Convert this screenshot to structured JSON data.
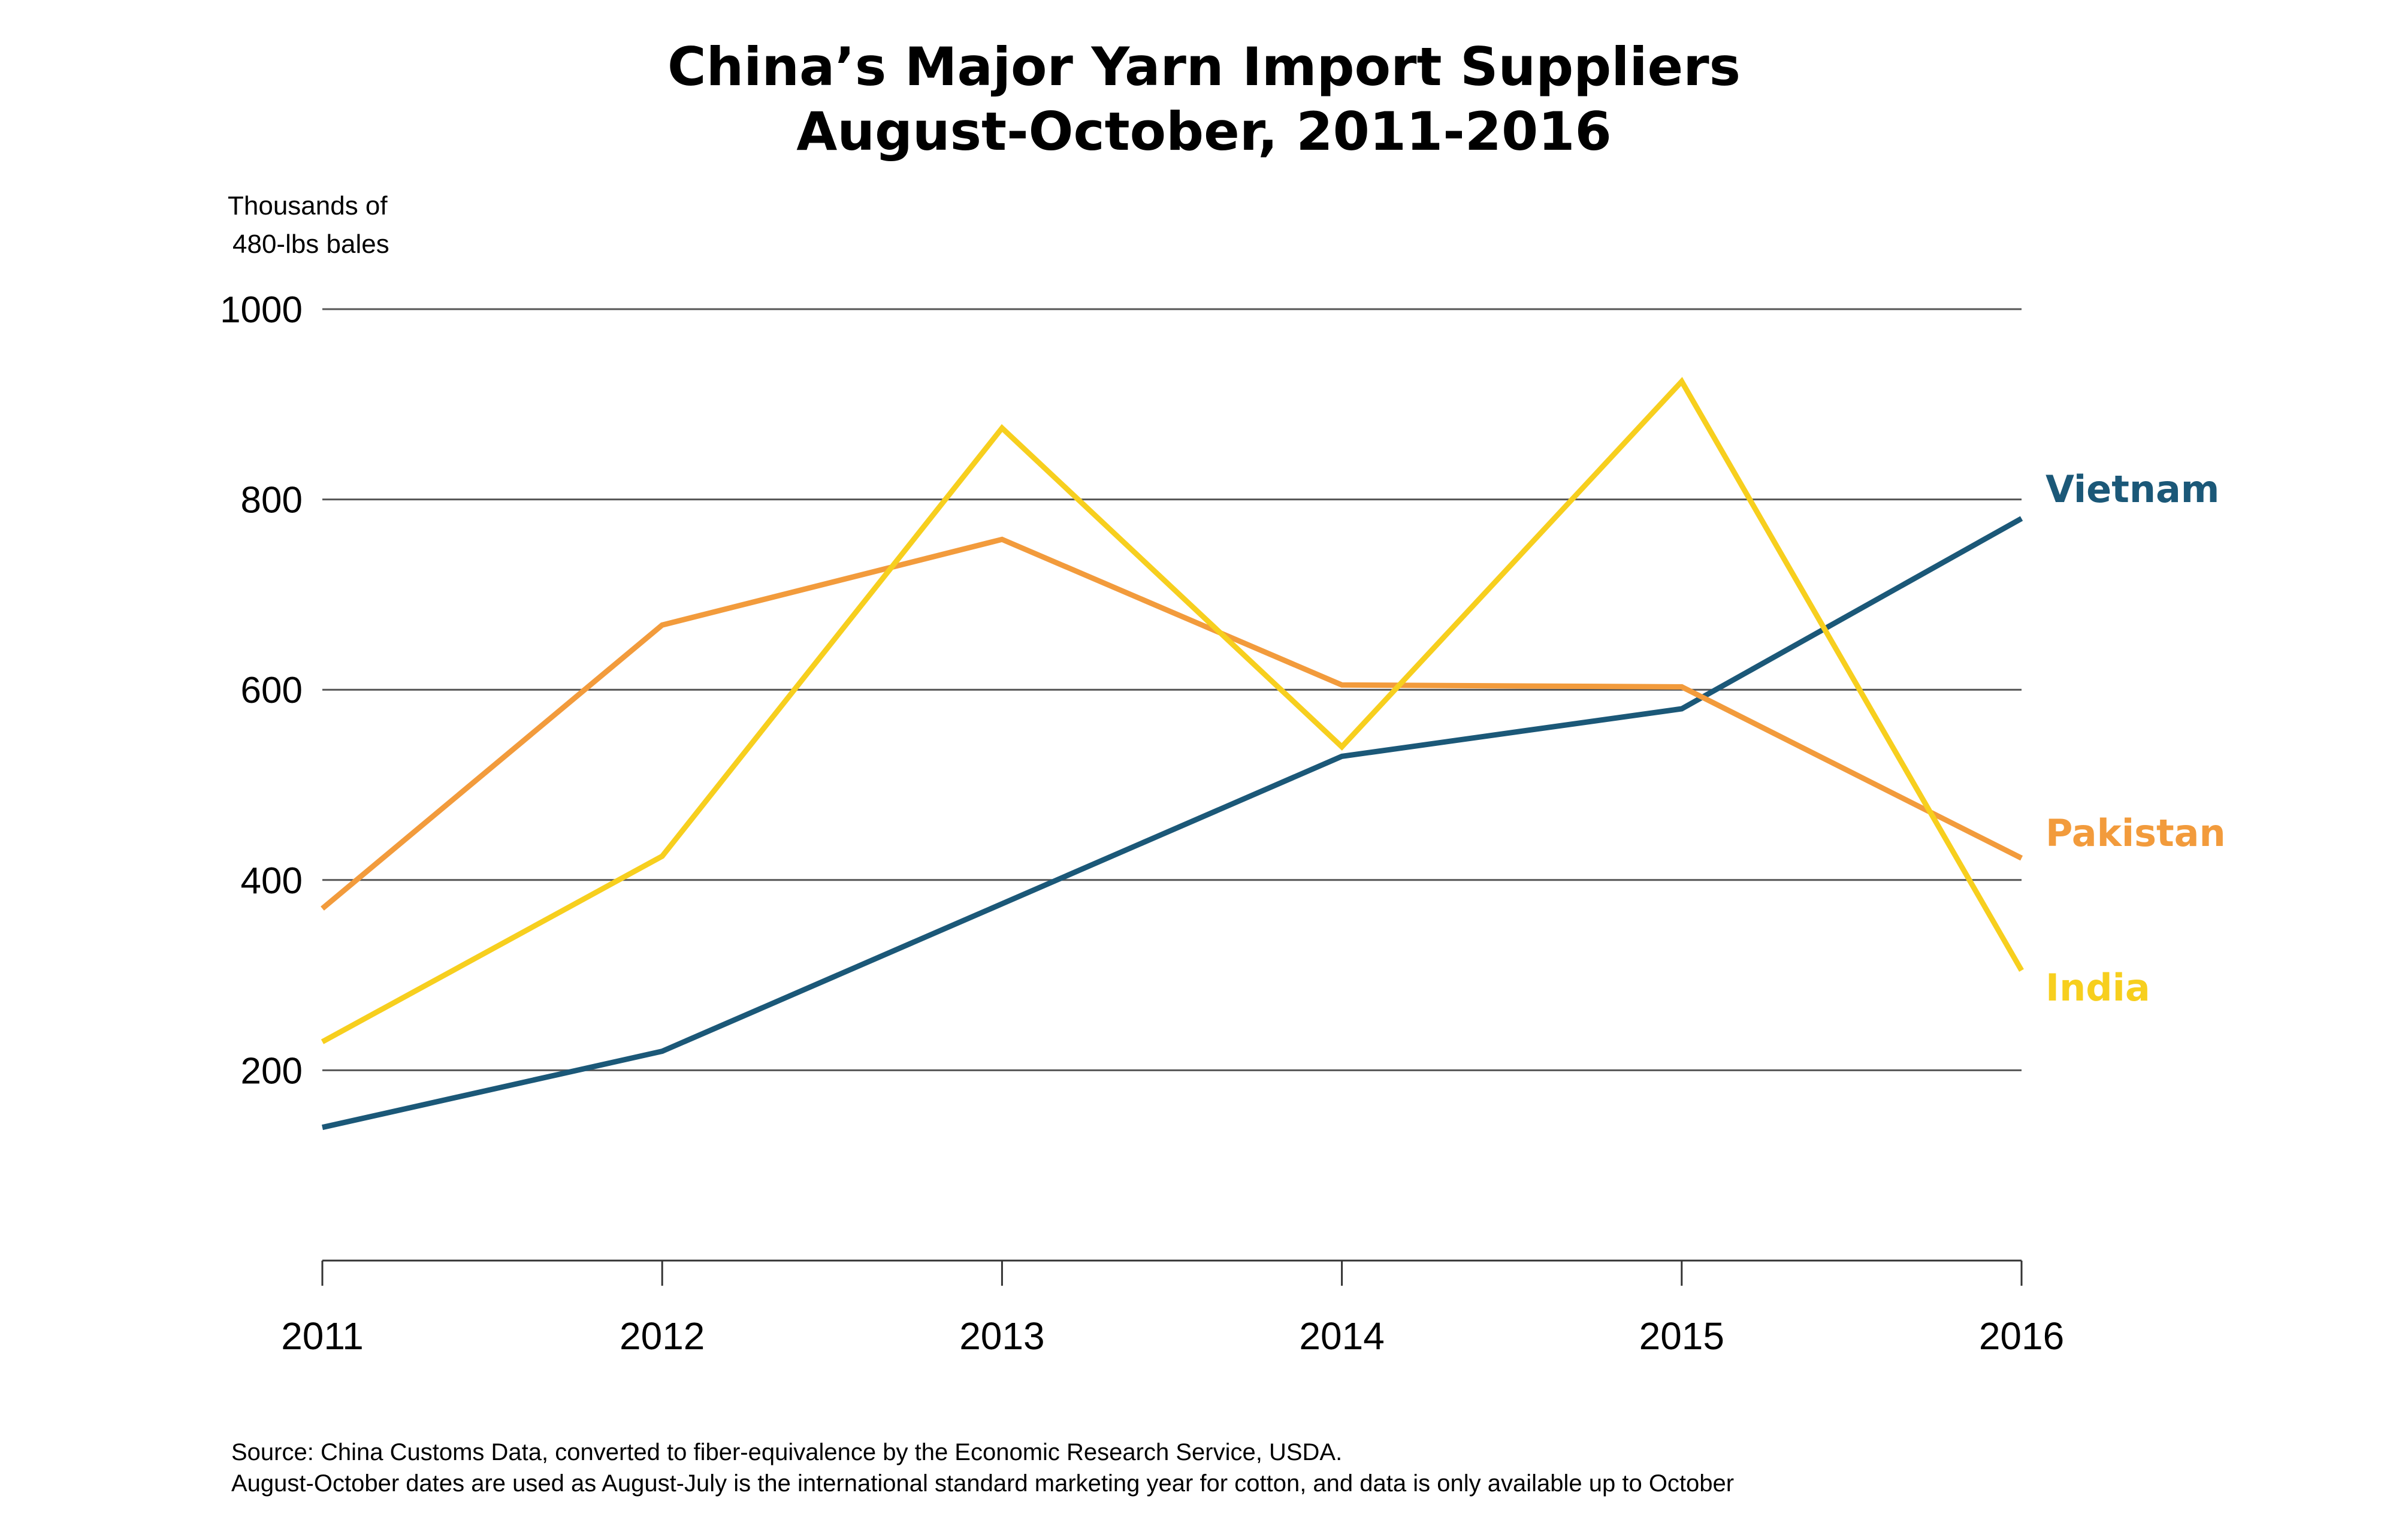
{
  "chart_data": {
    "type": "line",
    "title": "China’s Major Yarn Import Suppliers",
    "subtitle": "August-October, 2011-2016",
    "ylabel_line1": "Thousands of",
    "ylabel_line2": "480-lbs bales",
    "xlabel": "",
    "ylim": [
      0,
      1000
    ],
    "yticks": [
      200,
      400,
      600,
      800,
      1000
    ],
    "ytick_labels": [
      "200",
      "400",
      "600",
      "800",
      "1000"
    ],
    "categories": [
      "2011",
      "2012",
      "2013",
      "2014",
      "2015",
      "2016"
    ],
    "grid": "horizontal",
    "legend": "labels at right end of each line",
    "series": [
      {
        "name": "Vietnam",
        "color": "#1b5878",
        "values": [
          140,
          220,
          375,
          530,
          580,
          780
        ]
      },
      {
        "name": "Pakistan",
        "color": "#f29b3c",
        "values": [
          370,
          668,
          758,
          605,
          603,
          423
        ]
      },
      {
        "name": "India",
        "color": "#f7cf1e",
        "values": [
          230,
          425,
          875,
          540,
          924,
          305
        ]
      }
    ]
  },
  "footer": {
    "source": "Source:  China Customs Data, converted to fiber-equivalence by the Economic Research Service, USDA.",
    "note": "August-October dates are used as August-July is the international standard marketing year for cotton, and data is only available up to October"
  },
  "colors": {
    "gridline": "#555555",
    "axis": "#333333",
    "text": "#000000"
  }
}
